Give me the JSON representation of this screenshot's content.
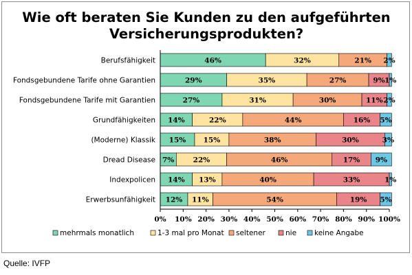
{
  "source": "Quelle: IVFP",
  "chart_data": {
    "type": "bar",
    "orientation": "horizontal",
    "stacked": "percent",
    "title": [
      "Wie oft beraten Sie Kunden zu den aufgeführten",
      "Versicherungsprodukten?"
    ],
    "categories": [
      "Berufsfähigkeit",
      "Fondsgebundene Tarife ohne Garantien",
      "Fondsgebundene Tarife mit Garantien",
      "Grundfähigkeiten",
      "(Moderne) Klassik",
      "Dread Disease",
      "Indexpolicen",
      "Erwerbsunfähigkeit"
    ],
    "series": [
      {
        "name": "mehrmals monatlich",
        "color": "#7ed7b2",
        "values": [
          46,
          29,
          27,
          14,
          15,
          7,
          14,
          12
        ]
      },
      {
        "name": "1-3 mal pro Monat",
        "color": "#ffe3a0",
        "values": [
          32,
          35,
          31,
          22,
          15,
          22,
          13,
          11
        ]
      },
      {
        "name": "seltener",
        "color": "#f5a97a",
        "values": [
          21,
          27,
          30,
          44,
          38,
          46,
          40,
          54
        ]
      },
      {
        "name": "nie",
        "color": "#e98489",
        "values": [
          0,
          9,
          11,
          16,
          30,
          17,
          33,
          19
        ]
      },
      {
        "name": "keine Angabe",
        "color": "#6cc7e4",
        "values": [
          2,
          1,
          2,
          5,
          3,
          9,
          1,
          5
        ]
      }
    ],
    "data_labels": [
      [
        "46%",
        "32%",
        "21%",
        "",
        "2%"
      ],
      [
        "29%",
        "35%",
        "27%",
        "9%",
        "1%"
      ],
      [
        "27%",
        "31%",
        "30%",
        "11%",
        "2%"
      ],
      [
        "14%",
        "22%",
        "44%",
        "16%",
        "5%"
      ],
      [
        "15%",
        "15%",
        "38%",
        "30%",
        "3%"
      ],
      [
        "7%",
        "22%",
        "46%",
        "17%",
        "9%"
      ],
      [
        "14%",
        "13%",
        "40%",
        "33%",
        "1%"
      ],
      [
        "12%",
        "11%",
        "54%",
        "19%",
        "5%"
      ]
    ],
    "xlim": [
      0,
      100
    ],
    "x_ticks": [
      "0%",
      "10%",
      "20%",
      "30%",
      "40%",
      "50%",
      "60%",
      "70%",
      "80%",
      "90%",
      "100%"
    ],
    "grid": false,
    "legend_position": "bottom"
  }
}
